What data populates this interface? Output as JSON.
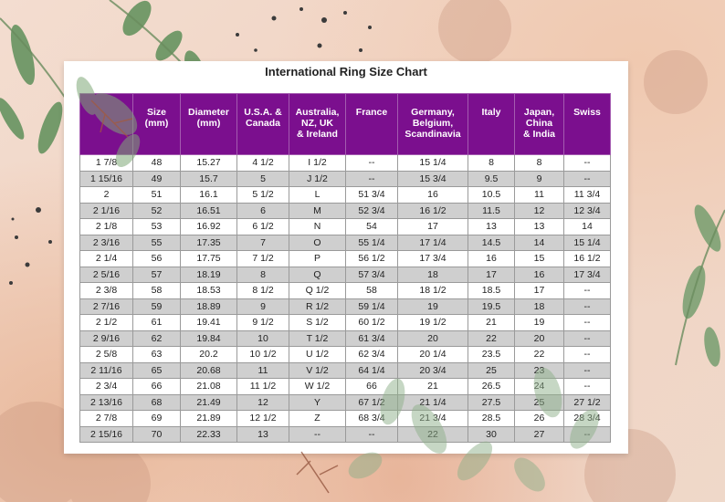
{
  "chart": {
    "title": "International Ring Size Chart"
  },
  "table": {
    "headers": [
      "",
      "Size\n(mm)",
      "Diameter\n(mm)",
      "U.S.A. &\nCanada",
      "Australia,\nNZ, UK\n& Ireland",
      "France",
      "Germany,\nBelgium,\nScandinavia",
      "Italy",
      "Japan,\nChina\n& India",
      "Swiss"
    ],
    "rows": [
      [
        "1  7/8",
        "48",
        "15.27",
        "4  1/2",
        "I  1/2",
        "--",
        "15  1/4",
        "8",
        "8",
        "--"
      ],
      [
        "1  15/16",
        "49",
        "15.7",
        "5",
        "J  1/2",
        "--",
        "15  3/4",
        "9.5",
        "9",
        "--"
      ],
      [
        "2",
        "51",
        "16.1",
        "5  1/2",
        "L",
        "51  3/4",
        "16",
        "10.5",
        "11",
        "11  3/4"
      ],
      [
        "2  1/16",
        "52",
        "16.51",
        "6",
        "M",
        "52  3/4",
        "16  1/2",
        "11.5",
        "12",
        "12  3/4"
      ],
      [
        "2  1/8",
        "53",
        "16.92",
        "6  1/2",
        "N",
        "54",
        "17",
        "13",
        "13",
        "14"
      ],
      [
        "2  3/16",
        "55",
        "17.35",
        "7",
        "O",
        "55  1/4",
        "17  1/4",
        "14.5",
        "14",
        "15  1/4"
      ],
      [
        "2  1/4",
        "56",
        "17.75",
        "7  1/2",
        "P",
        "56  1/2",
        "17  3/4",
        "16",
        "15",
        "16  1/2"
      ],
      [
        "2  5/16",
        "57",
        "18.19",
        "8",
        "Q",
        "57  3/4",
        "18",
        "17",
        "16",
        "17  3/4"
      ],
      [
        "2  3/8",
        "58",
        "18.53",
        "8  1/2",
        "Q  1/2",
        "58",
        "18  1/2",
        "18.5",
        "17",
        "--"
      ],
      [
        "2  7/16",
        "59",
        "18.89",
        "9",
        "R  1/2",
        "59  1/4",
        "19",
        "19.5",
        "18",
        "--"
      ],
      [
        "2  1/2",
        "61",
        "19.41",
        "9  1/2",
        "S  1/2",
        "60  1/2",
        "19  1/2",
        "21",
        "19",
        "--"
      ],
      [
        "2  9/16",
        "62",
        "19.84",
        "10",
        "T  1/2",
        "61  3/4",
        "20",
        "22",
        "20",
        "--"
      ],
      [
        "2  5/8",
        "63",
        "20.2",
        "10  1/2",
        "U  1/2",
        "62  3/4",
        "20  1/4",
        "23.5",
        "22",
        "--"
      ],
      [
        "2  11/16",
        "65",
        "20.68",
        "11",
        "V  1/2",
        "64  1/4",
        "20  3/4",
        "25",
        "23",
        "--"
      ],
      [
        "2  3/4",
        "66",
        "21.08",
        "11  1/2",
        "W  1/2",
        "66",
        "21",
        "26.5",
        "24",
        "--"
      ],
      [
        "2  13/16",
        "68",
        "21.49",
        "12",
        "Y",
        "67  1/2",
        "21  1/4",
        "27.5",
        "25",
        "27  1/2"
      ],
      [
        "2  7/8",
        "69",
        "21.89",
        "12  1/2",
        "Z",
        "68  3/4",
        "21  3/4",
        "28.5",
        "26",
        "28  3/4"
      ],
      [
        "2  15/16",
        "70",
        "22.33",
        "13",
        "--",
        "--",
        "22",
        "30",
        "27",
        "--"
      ]
    ]
  },
  "colors": {
    "header_bg": "#7b0f8e",
    "header_text": "#ffffff",
    "row_alt": "#cfcfcf",
    "leaf_green": "#6f9b6a"
  }
}
